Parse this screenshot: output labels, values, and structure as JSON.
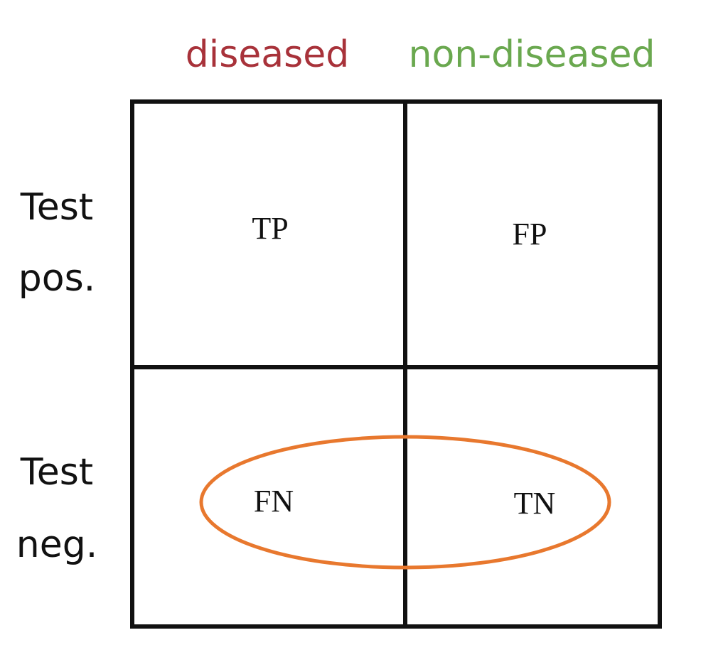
{
  "columns": [
    "diseased",
    "non-diseased"
  ],
  "rows": [
    {
      "label": [
        "Test",
        "pos."
      ],
      "cells": [
        "TP",
        "FP"
      ]
    },
    {
      "label": [
        "Test",
        "neg."
      ],
      "cells": [
        "FN",
        "TN"
      ]
    }
  ]
}
